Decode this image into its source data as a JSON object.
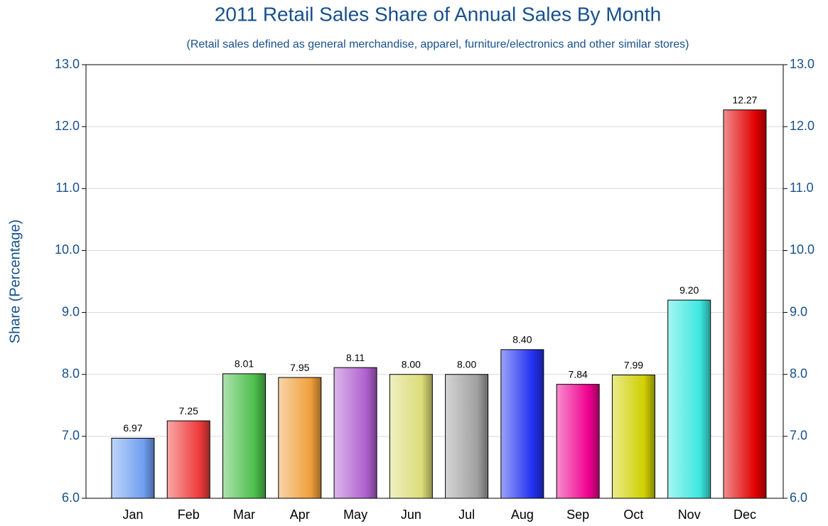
{
  "chart_data": {
    "type": "bar",
    "title": "2011 Retail Sales Share of Annual Sales By Month",
    "subtitle": "(Retail sales defined as general merchandise, apparel, furniture/electronics and other similar stores)",
    "y_label": "Share (Percentage)",
    "categories": [
      "Jan",
      "Feb",
      "Mar",
      "Apr",
      "May",
      "Jun",
      "Jul",
      "Aug",
      "Sep",
      "Oct",
      "Nov",
      "Dec"
    ],
    "values": [
      6.97,
      7.25,
      8.01,
      7.95,
      8.11,
      8.0,
      8.0,
      8.4,
      7.84,
      7.99,
      9.2,
      12.27
    ],
    "value_labels": [
      "6.97",
      "7.25",
      "8.01",
      "7.95",
      "8.11",
      "8.00",
      "8.00",
      "8.40",
      "7.84",
      "7.99",
      "9.20",
      "12.27"
    ],
    "colors": [
      "#6f9ff0",
      "#f03c3c",
      "#4cbf4c",
      "#f0a03c",
      "#b060d0",
      "#dcdc78",
      "#a0a0a0",
      "#2030f0",
      "#f00090",
      "#d0d000",
      "#3ce8e0",
      "#e00000"
    ],
    "ylim": [
      6,
      13
    ],
    "yticks": [
      {
        "value": 6,
        "label": "6.0"
      },
      {
        "value": 7,
        "label": "7.0"
      },
      {
        "value": 8,
        "label": "8.0"
      },
      {
        "value": 9,
        "label": "9.0"
      },
      {
        "value": 10,
        "label": "10.0"
      },
      {
        "value": 11,
        "label": "11.0"
      },
      {
        "value": 12,
        "label": "12.0"
      },
      {
        "value": 13,
        "label": "13.0"
      }
    ],
    "grid": true
  }
}
